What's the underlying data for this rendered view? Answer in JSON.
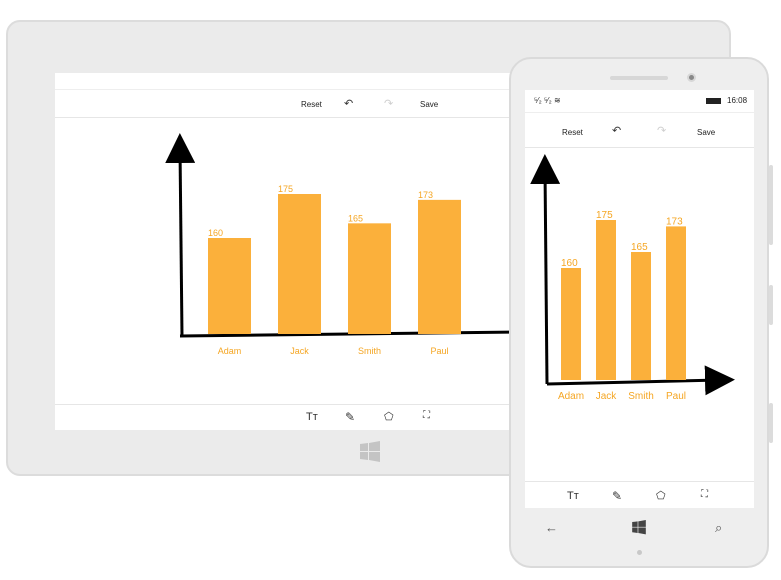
{
  "colors": {
    "bar": "#fbb03b",
    "label": "#f5a623",
    "axis": "#000000",
    "device": "#ebebeb"
  },
  "toolbar": {
    "reset_label": "Reset",
    "undo_icon": "undo-icon",
    "redo_icon": "redo-icon",
    "save_label": "Save"
  },
  "bottom_toolbar": {
    "text_icon": "Tт",
    "items": [
      "text-tool-icon",
      "pen-tool-icon",
      "shape-tool-icon",
      "select-tool-icon"
    ]
  },
  "phone": {
    "status_icons": "⁵⁄₂ ⁵⁄₂ ≋",
    "time": "16:08",
    "nav": [
      "back-icon",
      "windows-icon",
      "search-icon"
    ]
  },
  "chart_data": {
    "type": "bar",
    "categories": [
      "Adam",
      "Jack",
      "Smith",
      "Paul"
    ],
    "values": [
      160,
      175,
      165,
      173
    ],
    "title": "",
    "xlabel": "",
    "ylabel": ""
  }
}
